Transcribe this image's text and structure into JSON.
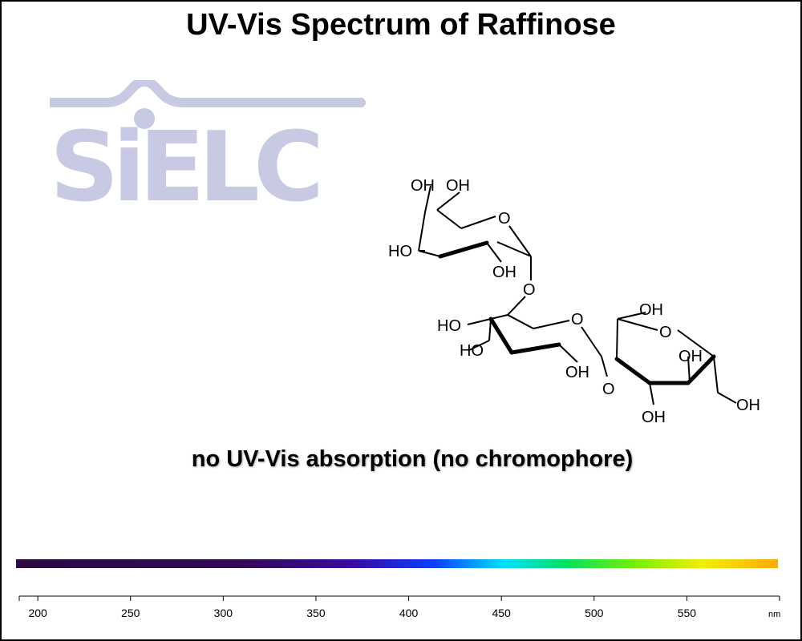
{
  "chart_data": {
    "type": "spectrum",
    "title": "UV-Vis Spectrum of Raffinose",
    "annotation": "no UV-Vis absorption (no chromophore)",
    "series": [],
    "x_axis": {
      "ticks": [
        200,
        250,
        300,
        350,
        400,
        450,
        500,
        550
      ],
      "tick_labels": [
        "200",
        "250",
        "300",
        "350",
        "400",
        "450",
        "500",
        "550"
      ],
      "unit": "nm",
      "range": [
        190,
        600
      ]
    },
    "color_bar": {
      "stops": [
        {
          "offset": 0.0,
          "color": "#2b0a45"
        },
        {
          "offset": 0.3,
          "color": "#320a55"
        },
        {
          "offset": 0.44,
          "color": "#3a0aa0"
        },
        {
          "offset": 0.55,
          "color": "#0a40ff"
        },
        {
          "offset": 0.64,
          "color": "#00e0ff"
        },
        {
          "offset": 0.72,
          "color": "#00e060"
        },
        {
          "offset": 0.82,
          "color": "#80f000"
        },
        {
          "offset": 0.9,
          "color": "#f0f000"
        },
        {
          "offset": 1.0,
          "color": "#ffaa00"
        }
      ]
    }
  },
  "logo": {
    "text": "SiELC",
    "color": "#c8c9e3"
  },
  "molecule": {
    "name": "raffinose",
    "labels": [
      "OH",
      "OH",
      "O",
      "HO",
      "OH",
      "O",
      "HO",
      "O",
      "HO",
      "OH",
      "OH",
      "O",
      "OH",
      "O",
      "OH",
      "OH"
    ]
  }
}
